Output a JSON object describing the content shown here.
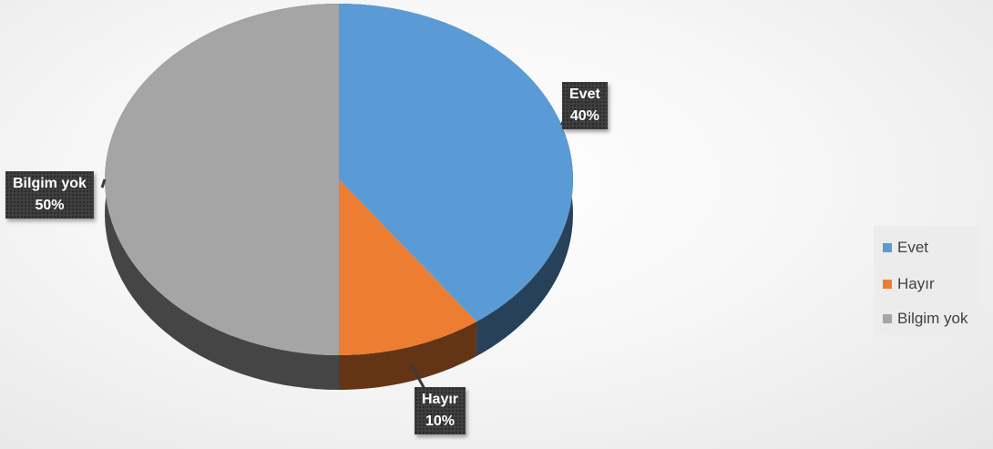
{
  "chart_data": {
    "type": "pie",
    "categories": [
      "Evet",
      "Hayır",
      "Bilgim yok"
    ],
    "values": [
      40,
      10,
      50
    ],
    "colors": [
      "#5b9bd5",
      "#ed7d31",
      "#a5a5a5"
    ],
    "data_labels": [
      {
        "category": "Evet",
        "percent": "40%"
      },
      {
        "category": "Hayır",
        "percent": "10%"
      },
      {
        "category": "Bilgim yok",
        "percent": "50%"
      }
    ],
    "legend": {
      "position": "right",
      "items": [
        {
          "label": "Evet",
          "color": "#5b9bd5"
        },
        {
          "label": "Hayır",
          "color": "#ed7d31"
        },
        {
          "label": "Bilgim yok",
          "color": "#a5a5a5"
        }
      ]
    },
    "style": "3d"
  }
}
